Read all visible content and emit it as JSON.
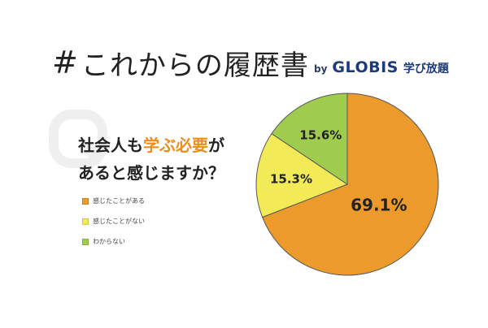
{
  "header": {
    "hash": "#",
    "title": "これからの履歴書",
    "by": "by",
    "brand": "GLOBIS",
    "service": "学び放題"
  },
  "question": {
    "line1_prefix": "社会人も",
    "line1_highlight": "学ぶ必要",
    "line1_suffix": "が",
    "line2": "あると感じますか？"
  },
  "colors": {
    "orange": "#ec9a2c",
    "yellow": "#f2ea57",
    "green": "#9fcc4f",
    "q_mark": "#efefef"
  },
  "chart_data": {
    "type": "pie",
    "title": "",
    "slices": [
      {
        "label": "感じたことがある",
        "value": 69.1,
        "display": "69.1%",
        "color": "#ec9a2c"
      },
      {
        "label": "感じたことがない",
        "value": 15.3,
        "display": "15.3%",
        "color": "#f2ea57"
      },
      {
        "label": "わからない",
        "value": 15.6,
        "display": "15.6%",
        "color": "#9fcc4f"
      }
    ],
    "legend": "left"
  }
}
